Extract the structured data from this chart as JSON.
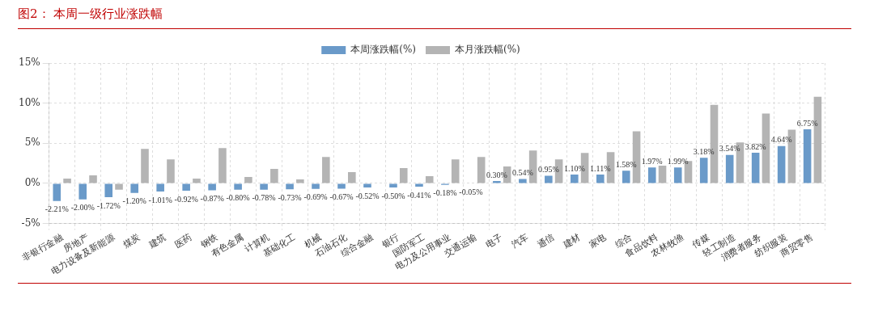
{
  "chart_data": {
    "type": "bar",
    "title": "图2：  本周一级行业涨跌幅",
    "categories": [
      "非银行金融",
      "房地产",
      "电力设备及新能源",
      "煤炭",
      "建筑",
      "医药",
      "钢铁",
      "有色金属",
      "计算机",
      "基础化工",
      "机械",
      "石油石化",
      "综合金融",
      "银行",
      "国防军工",
      "电力及公用事业",
      "交通运输",
      "电子",
      "汽车",
      "通信",
      "建材",
      "家电",
      "综合",
      "食品饮料",
      "农林牧渔",
      "传媒",
      "轻工制造",
      "消费者服务",
      "纺织服装",
      "商贸零售"
    ],
    "series": [
      {
        "name": "本周涨跌幅(%)",
        "color": "#6a9ac9",
        "values": [
          -2.21,
          -2.0,
          -1.72,
          -1.2,
          -1.01,
          -0.92,
          -0.87,
          -0.8,
          -0.78,
          -0.73,
          -0.69,
          -0.67,
          -0.52,
          -0.5,
          -0.41,
          -0.18,
          -0.05,
          0.3,
          0.54,
          0.95,
          1.1,
          1.11,
          1.58,
          1.97,
          1.99,
          3.18,
          3.54,
          3.82,
          4.64,
          6.75
        ],
        "value_labels": [
          "-2.21%",
          "-2.00%",
          "-1.72%",
          "-1.20%",
          "-1.01%",
          "-0.92%",
          "-0.87%",
          "-0.80%",
          "-0.78%",
          "-0.73%",
          "-0.69%",
          "-0.67%",
          "-0.52%",
          "-0.50%",
          "-0.41%",
          "-0.18%",
          "-0.05%",
          "0.30%",
          "0.54%",
          "0.95%",
          "1.10%",
          "1.11%",
          "1.58%",
          "1.97%",
          "1.99%",
          "3.18%",
          "3.54%",
          "3.82%",
          "4.64%",
          "6.75%"
        ]
      },
      {
        "name": "本月涨跌幅(%)",
        "color": "#b4b4b4",
        "values": [
          0.6,
          1.0,
          -0.8,
          4.3,
          3.0,
          0.6,
          4.4,
          0.8,
          1.8,
          0.5,
          3.3,
          1.4,
          null,
          1.9,
          0.9,
          3.0,
          3.3,
          2.1,
          4.1,
          3.0,
          3.8,
          3.9,
          6.5,
          2.2,
          2.8,
          9.8,
          5.1,
          8.7,
          6.7,
          10.8
        ]
      }
    ],
    "ylim": [
      -5,
      15
    ],
    "yticks": [
      {
        "value": -5,
        "label": "-5%"
      },
      {
        "value": 0,
        "label": "0%"
      },
      {
        "value": 5,
        "label": "5%"
      },
      {
        "value": 10,
        "label": "10%"
      },
      {
        "value": 15,
        "label": "15%"
      }
    ],
    "grid": true,
    "legend": "top"
  }
}
